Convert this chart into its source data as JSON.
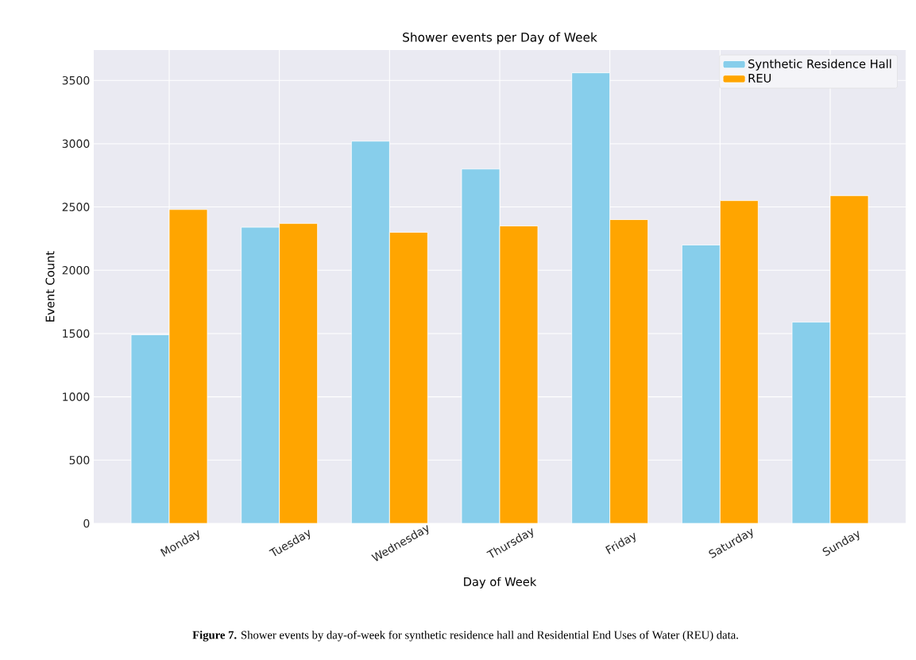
{
  "chart_data": {
    "type": "bar",
    "title": "Shower events per Day of Week",
    "xlabel": "Day of Week",
    "ylabel": "Event Count",
    "categories": [
      "Monday",
      "Tuesday",
      "Wednesday",
      "Thursday",
      "Friday",
      "Saturday",
      "Sunday"
    ],
    "series": [
      {
        "name": "Synthetic Residence Hall",
        "color": "#87ceeb",
        "values": [
          1490,
          2340,
          3020,
          2800,
          3560,
          2200,
          1590
        ]
      },
      {
        "name": "REU",
        "color": "#ffa500",
        "values": [
          2480,
          2370,
          2300,
          2350,
          2400,
          2550,
          2590
        ]
      }
    ],
    "ylim": [
      0,
      3740
    ],
    "yticks": [
      0,
      500,
      1000,
      1500,
      2000,
      2500,
      3000,
      3500
    ],
    "grid": true,
    "legend": "top right",
    "annotations": [
      "**Figure 7.** Shower events by day-of-week for synthetic residence hall and Residential End Uses of Water (REU) data."
    ]
  }
}
